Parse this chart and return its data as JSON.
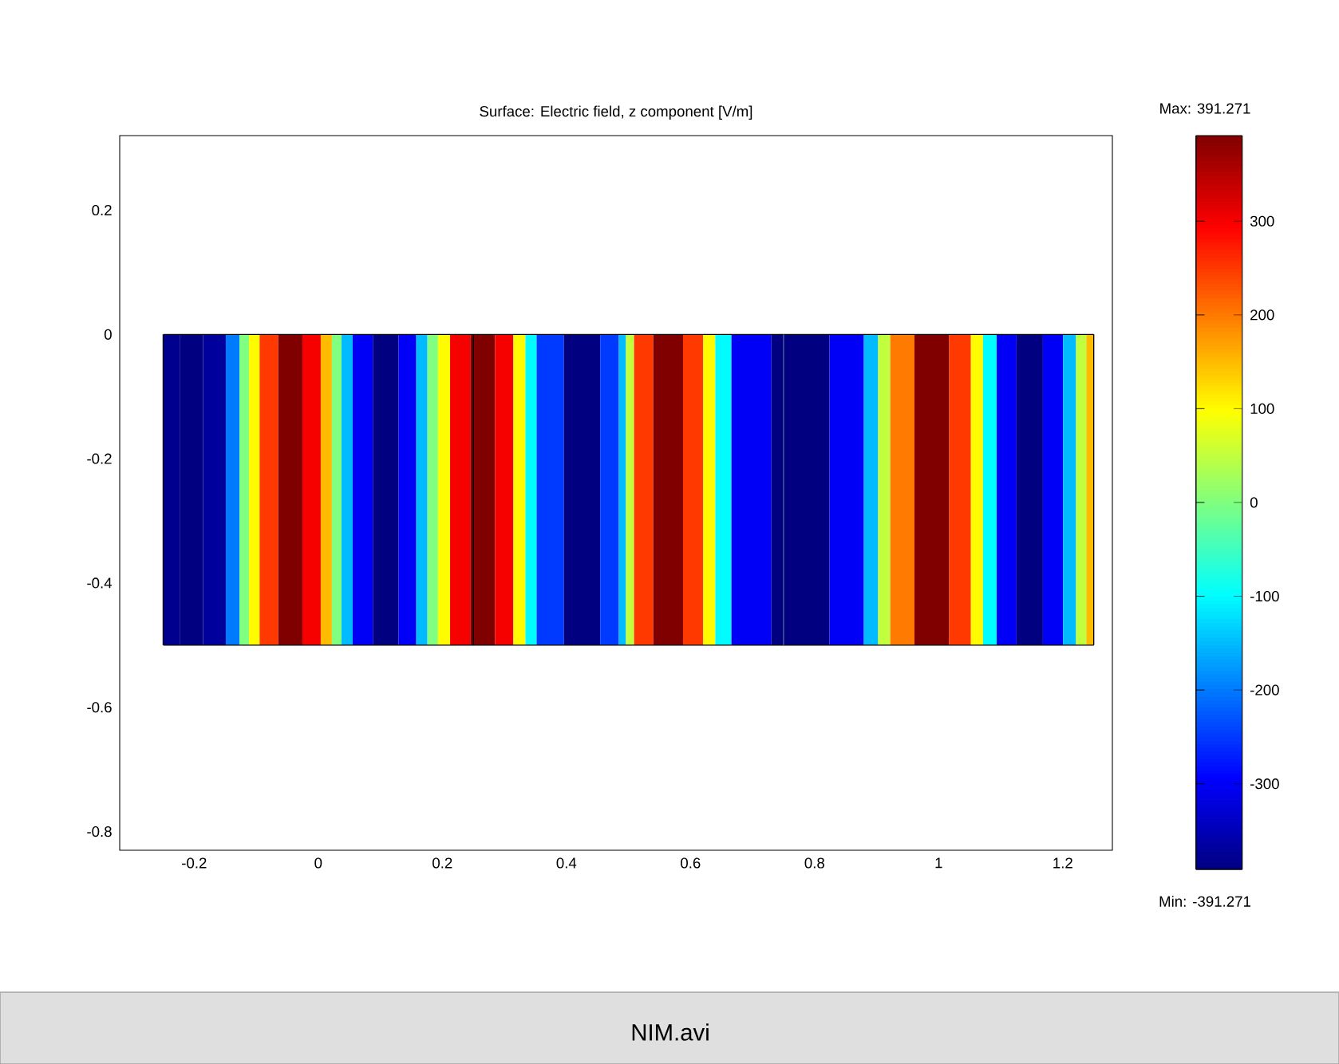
{
  "chart_data": {
    "type": "heatmap",
    "title": "Surface: Electric field, z component [V/m]",
    "x": [
      -0.236,
      -0.209,
      -0.162,
      -0.136,
      -0.118,
      -0.105,
      -0.084,
      -0.045,
      -0.006,
      0.014,
      0.03,
      0.045,
      0.066,
      0.11,
      0.149,
      0.167,
      0.185,
      0.201,
      0.224,
      0.266,
      0.304,
      0.325,
      0.343,
      0.361,
      0.431,
      0.478,
      0.491,
      0.501,
      0.517,
      0.563,
      0.613,
      0.628,
      0.652,
      0.68,
      0.781,
      0.867,
      0.892,
      0.913,
      0.931,
      0.991,
      1.043,
      1.061,
      1.082,
      1.105,
      1.146,
      1.19,
      1.211,
      1.232,
      1.244
    ],
    "cells": [
      [
        -380,
        -391,
        -370,
        -200,
        0,
        100,
        250,
        391,
        300,
        150,
        0,
        -150,
        -300,
        -391,
        -300,
        -150,
        0,
        100,
        300,
        391,
        300,
        100,
        -100,
        -250,
        -391,
        -250,
        -150,
        50,
        250,
        391,
        250,
        100,
        -100,
        -300,
        -391,
        -300,
        -150,
        50,
        200,
        391,
        250,
        100,
        -100,
        -300,
        -391,
        -300,
        -150,
        50,
        150
      ]
    ],
    "ref_lines": [
      {
        "axis": "y",
        "value": 0,
        "color": "#000000"
      },
      {
        "axis": "y",
        "value": -0.5,
        "color": "#000000"
      },
      {
        "axis": "x",
        "value": -0.25,
        "color": "#000000"
      },
      {
        "axis": "x",
        "value": 1.25,
        "color": "#000000"
      },
      {
        "axis": "x",
        "value": 0.25,
        "color": "#000000"
      },
      {
        "axis": "x",
        "value": 0.75,
        "color": "#4a6aa0"
      }
    ],
    "xlim": [
      -0.32,
      1.28
    ],
    "ylim": [
      -0.83,
      0.32
    ],
    "xticks": [
      -0.2,
      0,
      0.2,
      0.4,
      0.6,
      0.8,
      1,
      1.2
    ],
    "yticks": [
      -0.8,
      -0.6,
      -0.4,
      -0.2,
      0,
      0.2
    ],
    "clim": [
      -391.271,
      391.271
    ],
    "cticks": [
      -300,
      -200,
      -100,
      0,
      100,
      200,
      300
    ],
    "annotations": [
      "Max: 391.271",
      "Min: -391.271",
      "NIM.avi"
    ]
  }
}
